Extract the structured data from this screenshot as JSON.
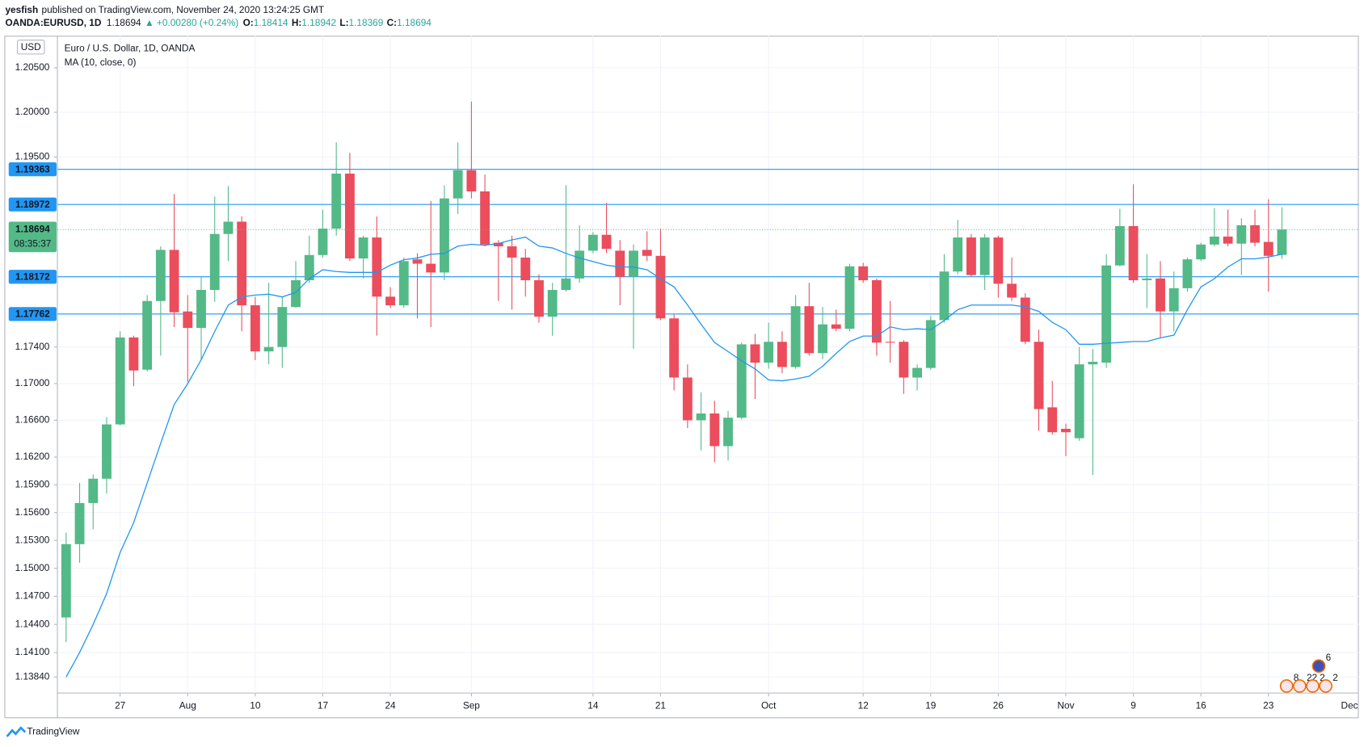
{
  "header": {
    "author": "yesfish",
    "published": "published on TradingView.com, November 24, 2020 13:24:25 GMT",
    "symbol": "OANDA:EURUSD, 1D",
    "change": "▲ +0.00280 (+0.24%)",
    "ohlc_labels": [
      "O:",
      "H:",
      "L:",
      "C:"
    ]
  },
  "chart_data": {
    "type": "candlestick",
    "title": "Euro / U.S. Dollar, 1D, OANDA",
    "currency": "USD",
    "up_color": "#53b987",
    "down_color": "#eb4d5c",
    "categories": [
      null,
      null,
      null,
      null,
      "27",
      null,
      null,
      null,
      null,
      "Aug",
      null,
      null,
      null,
      null,
      "10",
      null,
      null,
      null,
      null,
      "17",
      null,
      null,
      null,
      null,
      "24",
      null,
      null,
      null,
      null,
      null,
      "Sep",
      null,
      null,
      null,
      null,
      null,
      null,
      null,
      null,
      "14",
      null,
      null,
      null,
      null,
      "21",
      null,
      null,
      null,
      null,
      null,
      null,
      null,
      "Oct",
      null,
      null,
      null,
      null,
      null,
      null,
      "12",
      null,
      null,
      null,
      null,
      "19",
      null,
      null,
      null,
      null,
      "26",
      null,
      null,
      null,
      null,
      "Nov",
      null,
      null,
      null,
      null,
      "9",
      null,
      null,
      null,
      null,
      "16",
      null,
      null,
      null,
      null,
      "23",
      null
    ],
    "x_end_label": "Dec",
    "open": [
      1.14474,
      1.1526,
      1.15703,
      1.15966,
      1.16555,
      1.17505,
      1.17152,
      1.17905,
      1.18469,
      1.1779,
      1.17609,
      1.18027,
      1.18645,
      1.18781,
      1.17858,
      1.17352,
      1.174,
      1.17839,
      1.18134,
      1.18412,
      1.18704,
      1.19315,
      1.18374,
      1.18606,
      1.17953,
      1.17858,
      1.18364,
      1.18316,
      1.18219,
      1.19039,
      1.19353,
      1.19117,
      1.18548,
      1.18508,
      1.18384,
      1.18134,
      1.17733,
      1.18027,
      1.18153,
      1.1846,
      1.18636,
      1.1846,
      1.18172,
      1.18469,
      1.18403,
      1.17714,
      1.17066,
      1.166,
      1.16674,
      1.16319,
      1.16628,
      1.17429,
      1.17229,
      1.17457,
      1.17181,
      1.17848,
      1.17333,
      1.17648,
      1.176,
      1.18287,
      1.18134,
      1.17457,
      1.17457,
      1.17066,
      1.17171,
      1.17695,
      1.1823,
      1.18606,
      1.18191,
      1.18606,
      1.18095,
      1.17943,
      1.17457,
      1.16741,
      1.16507,
      1.16405,
      1.1721,
      1.17229,
      1.18297,
      1.18732,
      1.18134,
      1.18153,
      1.17791,
      1.18046,
      1.18364,
      1.18528,
      1.18616,
      1.18538,
      1.18742,
      1.18557,
      1.18414
    ],
    "high": [
      1.15384,
      1.1592,
      1.16012,
      1.16635,
      1.17572,
      1.17524,
      1.1797,
      1.18508,
      1.19088,
      1.1797,
      1.18172,
      1.1906,
      1.19176,
      1.18839,
      1.17953,
      1.18105,
      1.17953,
      1.18345,
      1.18626,
      1.18914,
      1.19664,
      1.19547,
      1.18626,
      1.18839,
      1.18057,
      1.18384,
      1.18432,
      1.1901,
      1.19186,
      1.19664,
      1.2012,
      1.19305,
      1.18577,
      1.18626,
      1.1848,
      1.182,
      1.18105,
      1.19186,
      1.18742,
      1.18665,
      1.18991,
      1.18577,
      1.18528,
      1.18674,
      1.18704,
      1.17762,
      1.1721,
      1.16905,
      1.16813,
      1.16702,
      1.17448,
      1.17543,
      1.17667,
      1.17572,
      1.1797,
      1.18105,
      1.17839,
      1.1781,
      1.18316,
      1.18326,
      1.18153,
      1.17905,
      1.17476,
      1.1721,
      1.17743,
      1.18422,
      1.18801,
      1.18645,
      1.18645,
      1.18626,
      1.18384,
      1.17991,
      1.1759,
      1.1703,
      1.16563,
      1.174,
      1.17381,
      1.18422,
      1.18924,
      1.19196,
      1.18422,
      1.18345,
      1.1823,
      1.18384,
      1.18548,
      1.18933,
      1.18914,
      1.18819,
      1.18914,
      1.1903,
      1.18942
    ],
    "low": [
      1.14211,
      1.1506,
      1.1542,
      1.15805,
      1.16545,
      1.16971,
      1.17133,
      1.17305,
      1.17619,
      1.17019,
      1.17257,
      1.17896,
      1.18345,
      1.17572,
      1.17257,
      1.1721,
      1.17171,
      1.17829,
      1.18105,
      1.18384,
      1.18626,
      1.18345,
      1.18153,
      1.17524,
      1.17829,
      1.17829,
      1.17714,
      1.17619,
      1.18134,
      1.18866,
      1.19039,
      1.18508,
      1.17905,
      1.1781,
      1.17953,
      1.17667,
      1.17524,
      1.18008,
      1.18105,
      1.18432,
      1.18432,
      1.17858,
      1.17381,
      1.18345,
      1.17695,
      1.16924,
      1.16516,
      1.16273,
      1.16144,
      1.16163,
      1.1661,
      1.16831,
      1.17162,
      1.17114,
      1.17162,
      1.17305,
      1.17267,
      1.17572,
      1.17572,
      1.18105,
      1.17305,
      1.17229,
      1.16886,
      1.16924,
      1.17152,
      1.17667,
      1.182,
      1.18172,
      1.18027,
      1.17943,
      1.17905,
      1.17429,
      1.16489,
      1.16442,
      1.1621,
      1.16377,
      1.16007,
      1.17171,
      1.18287,
      1.18105,
      1.17829,
      1.17505,
      1.17572,
      1.18008,
      1.18345,
      1.18508,
      1.18508,
      1.18191,
      1.18508,
      1.18008,
      1.18369
    ],
    "close": [
      1.1526,
      1.15703,
      1.15966,
      1.16555,
      1.17505,
      1.17143,
      1.17905,
      1.18469,
      1.17781,
      1.17609,
      1.18027,
      1.18645,
      1.18781,
      1.17858,
      1.17352,
      1.174,
      1.17839,
      1.18134,
      1.18412,
      1.18704,
      1.19315,
      1.18374,
      1.18606,
      1.17953,
      1.17858,
      1.18345,
      1.18316,
      1.18219,
      1.19039,
      1.19353,
      1.19117,
      1.18528,
      1.18508,
      1.18384,
      1.18134,
      1.17733,
      1.18027,
      1.18153,
      1.1846,
      1.18636,
      1.1848,
      1.18172,
      1.1846,
      1.18403,
      1.17714,
      1.17066,
      1.166,
      1.16674,
      1.16319,
      1.16628,
      1.17429,
      1.17229,
      1.17457,
      1.17181,
      1.17848,
      1.17333,
      1.17648,
      1.176,
      1.18287,
      1.18134,
      1.17448,
      1.17448,
      1.17066,
      1.17171,
      1.17695,
      1.1823,
      1.18606,
      1.18191,
      1.18606,
      1.18095,
      1.17943,
      1.17457,
      1.16722,
      1.1647,
      1.1647,
      1.1721,
      1.17238,
      1.18297,
      1.18732,
      1.18134,
      1.18153,
      1.17791,
      1.18046,
      1.18364,
      1.18528,
      1.18616,
      1.18538,
      1.18742,
      1.18548,
      1.18403,
      1.18694
    ],
    "ma": {
      "name": "MA (10, close, 0)",
      "color": "#2196f3",
      "values": [
        1.1384,
        1.141,
        1.144,
        1.1473,
        1.1517,
        1.1549,
        1.1592,
        1.1635,
        1.1677,
        1.17,
        1.1726,
        1.1757,
        1.1786,
        1.1795,
        1.1797,
        1.1798,
        1.1795,
        1.18,
        1.1815,
        1.1825,
        1.1823,
        1.1822,
        1.1822,
        1.1822,
        1.183,
        1.1836,
        1.1838,
        1.1842,
        1.1843,
        1.1851,
        1.1853,
        1.1852,
        1.1854,
        1.1858,
        1.1861,
        1.1851,
        1.1849,
        1.1843,
        1.1838,
        1.1834,
        1.183,
        1.1828,
        1.1828,
        1.1825,
        1.1815,
        1.1806,
        1.1786,
        1.1765,
        1.1745,
        1.1735,
        1.1725,
        1.1716,
        1.1704,
        1.1703,
        1.1705,
        1.1708,
        1.1719,
        1.1733,
        1.1746,
        1.1752,
        1.1752,
        1.1762,
        1.1759,
        1.176,
        1.1759,
        1.1769,
        1.1781,
        1.1786,
        1.1786,
        1.1786,
        1.1786,
        1.1784,
        1.1779,
        1.1767,
        1.1759,
        1.1743,
        1.1743,
        1.1744,
        1.1745,
        1.1746,
        1.1746,
        1.175,
        1.1753,
        1.1781,
        1.1806,
        1.1815,
        1.1828,
        1.1837,
        1.1837,
        1.1839,
        1.1842
      ]
    },
    "log_scale": true,
    "ylim": [
      1.1367,
      1.2086
    ],
    "yticks": [
      {
        "value": 1.1384,
        "label": "1.13840"
      },
      {
        "value": 1.141,
        "label": "1.14100"
      },
      {
        "value": 1.144,
        "label": "1.14400"
      },
      {
        "value": 1.147,
        "label": "1.14700"
      },
      {
        "value": 1.15,
        "label": "1.15000"
      },
      {
        "value": 1.153,
        "label": "1.15300"
      },
      {
        "value": 1.156,
        "label": "1.15600"
      },
      {
        "value": 1.159,
        "label": "1.15900"
      },
      {
        "value": 1.162,
        "label": "1.16200"
      },
      {
        "value": 1.166,
        "label": "1.16600"
      },
      {
        "value": 1.17,
        "label": "1.17000"
      },
      {
        "value": 1.174,
        "label": "1.17400"
      },
      {
        "value": 1.195,
        "label": "1.19500"
      },
      {
        "value": 1.2,
        "label": "1.20000"
      },
      {
        "value": 1.205,
        "label": "1.20500"
      }
    ],
    "levels": [
      1.19363,
      1.18972,
      1.18172,
      1.17762
    ],
    "level_color": "#2196f3",
    "countdown": "08:35:37",
    "grid": true,
    "events": [
      "6",
      "8",
      "22",
      "2",
      "2"
    ]
  },
  "footer": {
    "brand": "TradingView"
  }
}
